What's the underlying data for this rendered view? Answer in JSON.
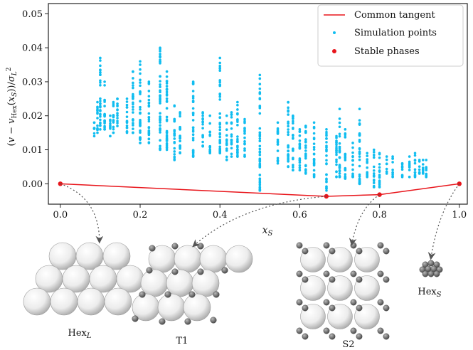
{
  "chart_data": {
    "type": "scatter",
    "xlabel": "x_S",
    "ylabel": "(v − v_Hex(x_S))/σ_L²",
    "xlim": [
      -0.03,
      1.02
    ],
    "ylim": [
      -0.006,
      0.053
    ],
    "x_ticks": [
      0.0,
      0.2,
      0.4,
      0.6,
      0.8,
      1.0
    ],
    "x_tick_labels": [
      "0.0",
      "0.2",
      "0.4",
      "0.6",
      "0.8",
      "1.0"
    ],
    "y_ticks": [
      0.0,
      0.01,
      0.02,
      0.03,
      0.04,
      0.05
    ],
    "y_tick_labels": [
      "0.00",
      "0.01",
      "0.02",
      "0.03",
      "0.04",
      "0.05"
    ],
    "legend_position": "top-right",
    "legend": [
      {
        "label": "Common tangent",
        "kind": "line",
        "color": "#e8151b"
      },
      {
        "label": "Simulation points",
        "kind": "dot",
        "color": "#10bdf0"
      },
      {
        "label": "Stable phases",
        "kind": "dot",
        "color": "#e8151b"
      }
    ],
    "common_tangent": {
      "x": [
        0.0,
        0.6667,
        0.8,
        1.0
      ],
      "y": [
        0.0,
        -0.0037,
        -0.0032,
        0.0
      ]
    },
    "stable_phases": {
      "x": [
        0.0,
        0.6667,
        0.8,
        1.0
      ],
      "y": [
        0.0,
        -0.0037,
        -0.0032,
        0.0
      ]
    },
    "simulation_columns": [
      {
        "x": 0.085,
        "ymin": 0.014,
        "ymax": 0.018
      },
      {
        "x": 0.093,
        "ymin": 0.015,
        "ymax": 0.024
      },
      {
        "x": 0.1,
        "ymin": 0.016,
        "ymax": 0.037
      },
      {
        "x": 0.111,
        "ymin": 0.016,
        "ymax": 0.03
      },
      {
        "x": 0.125,
        "ymin": 0.014,
        "ymax": 0.02
      },
      {
        "x": 0.133,
        "ymin": 0.015,
        "ymax": 0.024
      },
      {
        "x": 0.143,
        "ymin": 0.017,
        "ymax": 0.025
      },
      {
        "x": 0.167,
        "ymin": 0.015,
        "ymax": 0.025
      },
      {
        "x": 0.182,
        "ymin": 0.015,
        "ymax": 0.033
      },
      {
        "x": 0.2,
        "ymin": 0.012,
        "ymax": 0.036
      },
      {
        "x": 0.222,
        "ymin": 0.012,
        "ymax": 0.03
      },
      {
        "x": 0.25,
        "ymin": 0.01,
        "ymax": 0.04
      },
      {
        "x": 0.267,
        "ymin": 0.01,
        "ymax": 0.033
      },
      {
        "x": 0.286,
        "ymin": 0.007,
        "ymax": 0.023
      },
      {
        "x": 0.3,
        "ymin": 0.009,
        "ymax": 0.021
      },
      {
        "x": 0.333,
        "ymin": 0.008,
        "ymax": 0.03
      },
      {
        "x": 0.357,
        "ymin": 0.011,
        "ymax": 0.021
      },
      {
        "x": 0.375,
        "ymin": 0.009,
        "ymax": 0.02
      },
      {
        "x": 0.4,
        "ymin": 0.009,
        "ymax": 0.037
      },
      {
        "x": 0.417,
        "ymin": 0.007,
        "ymax": 0.02
      },
      {
        "x": 0.429,
        "ymin": 0.008,
        "ymax": 0.021
      },
      {
        "x": 0.444,
        "ymin": 0.008,
        "ymax": 0.024
      },
      {
        "x": 0.462,
        "ymin": 0.008,
        "ymax": 0.019
      },
      {
        "x": 0.5,
        "ymin": -0.002,
        "ymax": 0.032
      },
      {
        "x": 0.545,
        "ymin": 0.006,
        "ymax": 0.018
      },
      {
        "x": 0.571,
        "ymin": 0.005,
        "ymax": 0.024
      },
      {
        "x": 0.583,
        "ymin": 0.004,
        "ymax": 0.02
      },
      {
        "x": 0.6,
        "ymin": 0.004,
        "ymax": 0.016
      },
      {
        "x": 0.615,
        "ymin": 0.003,
        "ymax": 0.017
      },
      {
        "x": 0.636,
        "ymin": 0.002,
        "ymax": 0.018
      },
      {
        "x": 0.667,
        "ymin": -0.002,
        "ymax": 0.016
      },
      {
        "x": 0.692,
        "ymin": 0.002,
        "ymax": 0.014
      },
      {
        "x": 0.7,
        "ymin": 0.002,
        "ymax": 0.022
      },
      {
        "x": 0.714,
        "ymin": 0.0015,
        "ymax": 0.016
      },
      {
        "x": 0.733,
        "ymin": 0.002,
        "ymax": 0.012
      },
      {
        "x": 0.75,
        "ymin": 0.0,
        "ymax": 0.022
      },
      {
        "x": 0.769,
        "ymin": 0.002,
        "ymax": 0.009
      },
      {
        "x": 0.786,
        "ymin": -0.001,
        "ymax": 0.01
      },
      {
        "x": 0.8,
        "ymin": -0.001,
        "ymax": 0.009
      },
      {
        "x": 0.818,
        "ymin": 0.003,
        "ymax": 0.008
      },
      {
        "x": 0.833,
        "ymin": 0.002,
        "ymax": 0.008
      },
      {
        "x": 0.857,
        "ymin": 0.002,
        "ymax": 0.006
      },
      {
        "x": 0.875,
        "ymin": 0.002,
        "ymax": 0.008
      },
      {
        "x": 0.889,
        "ymin": 0.002,
        "ymax": 0.009
      },
      {
        "x": 0.9,
        "ymin": 0.003,
        "ymax": 0.007
      },
      {
        "x": 0.909,
        "ymin": 0.003,
        "ymax": 0.007
      },
      {
        "x": 0.917,
        "ymin": 0.002,
        "ymax": 0.007
      }
    ]
  },
  "structures": [
    {
      "label": "Hex_L",
      "x": 0.0
    },
    {
      "label": "T1",
      "x": 0.6667
    },
    {
      "label": "S2",
      "x": 0.8
    },
    {
      "label": "Hex_S",
      "x": 1.0
    }
  ],
  "colors": {
    "tangent": "#e8151b",
    "simulation": "#10bdf0",
    "axes": "#222222",
    "large_particle": "#f0f0f0",
    "small_particle": "#6e6e6e"
  }
}
